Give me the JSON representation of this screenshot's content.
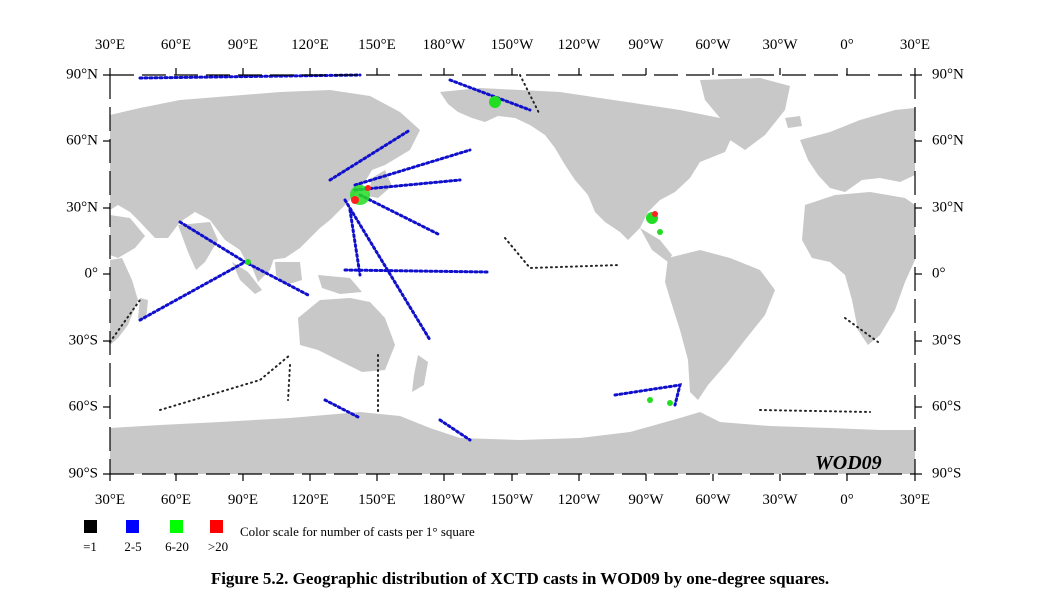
{
  "map": {
    "watermark": "WOD09",
    "lon_labels": [
      "30°E",
      "60°E",
      "90°E",
      "120°E",
      "150°E",
      "180°W",
      "150°W",
      "120°W",
      "90°W",
      "60°W",
      "30°W",
      "0°",
      "30°E"
    ],
    "lat_labels": [
      "90°N",
      "60°N",
      "30°N",
      "0°",
      "30°S",
      "60°S",
      "90°S"
    ],
    "colors": {
      "ocean": "#ffffff",
      "land": "#c8c8c8",
      "frame": "#000000"
    }
  },
  "legend": {
    "title": "Color scale for number of casts per 1° square",
    "items": [
      {
        "label": "=1",
        "color": "#000000"
      },
      {
        "label": "2-5",
        "color": "#0000ff"
      },
      {
        "label": "6-20",
        "color": "#00ff00"
      },
      {
        "label": ">20",
        "color": "#ff0000"
      }
    ]
  },
  "caption": "Figure 5.2. Geographic distribution of XCTD casts in WOD09 by one-degree squares."
}
